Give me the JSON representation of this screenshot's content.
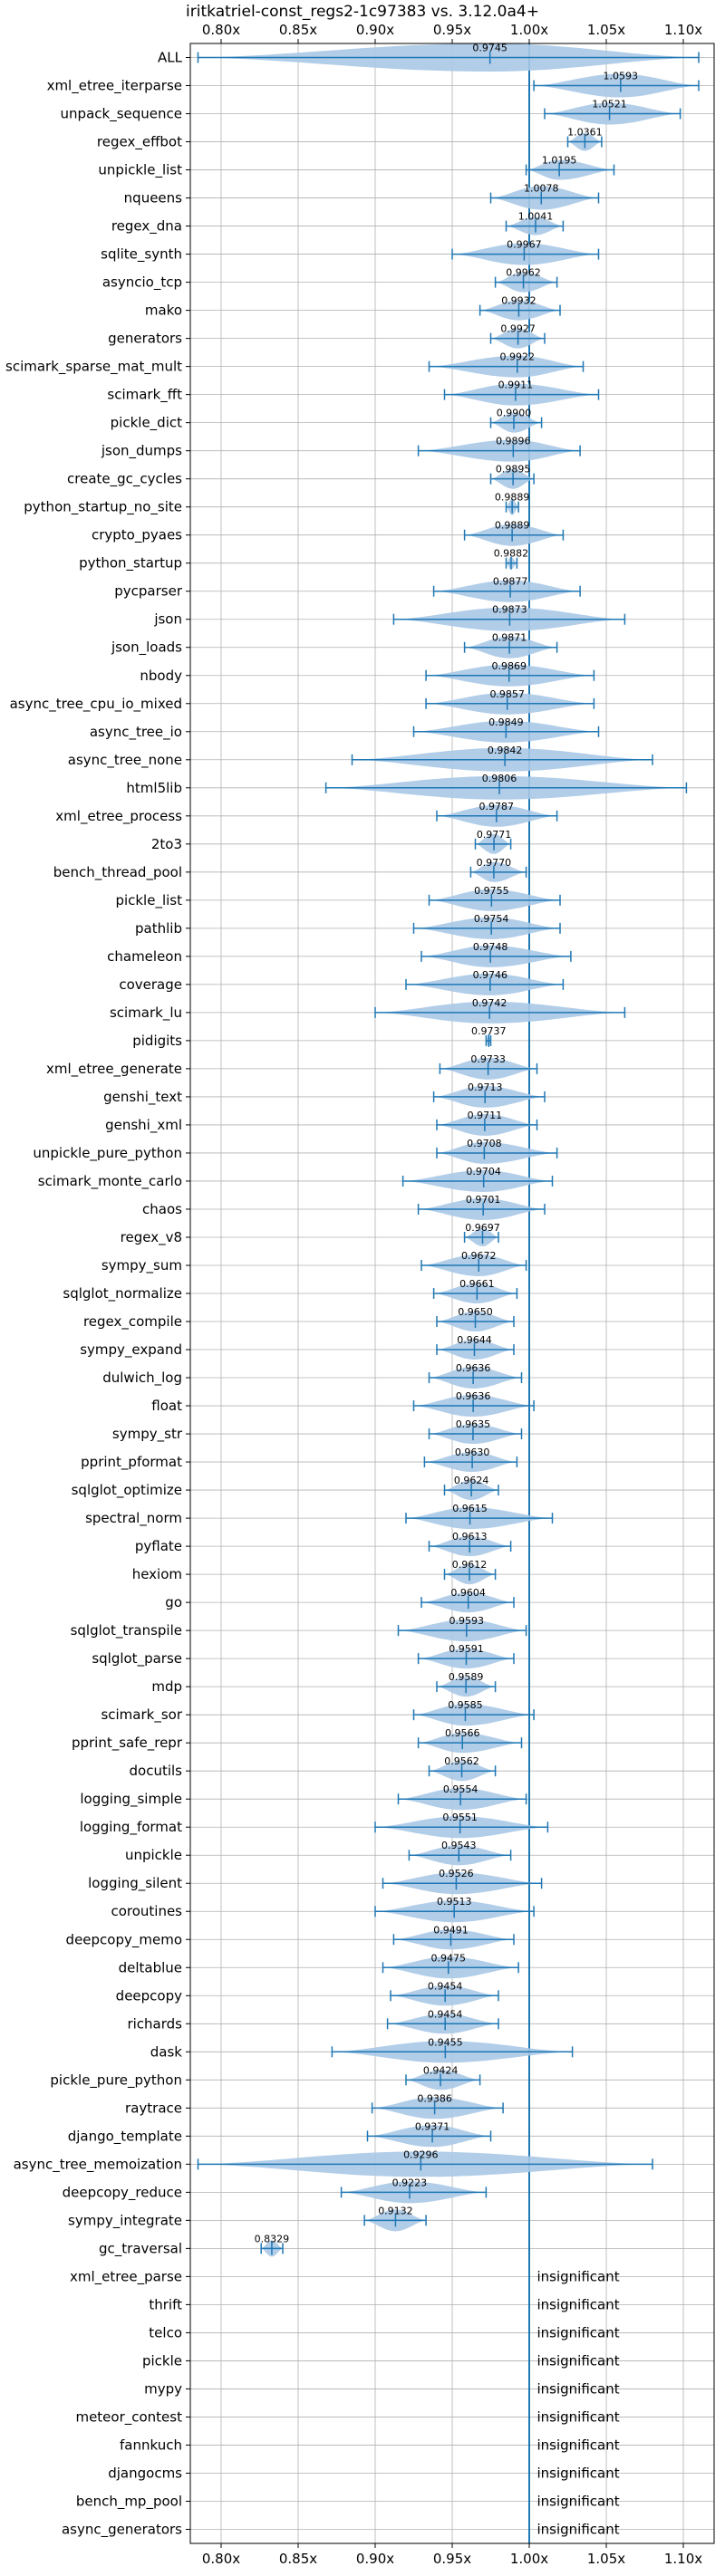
{
  "chart_data": {
    "type": "violin",
    "title": "iritkatriel-const_regs2-1c97383 vs. 3.12.0a4+",
    "xlabel": "",
    "ylabel": "",
    "xlim": [
      0.78,
      1.12
    ],
    "xticks": [
      0.8,
      0.85,
      0.9,
      0.95,
      1.0,
      1.05,
      1.1
    ],
    "xtick_labels": [
      "0.80x",
      "0.85x",
      "0.90x",
      "0.95x",
      "1.00x",
      "1.05x",
      "1.10x"
    ],
    "reference_line": 1.0,
    "grid": true,
    "colors": {
      "body": "#a9c8e6",
      "line": "#1f77b4",
      "grid": "#b0b0b0"
    },
    "insignificant_text": "insignificant",
    "rows": [
      {
        "name": "ALL",
        "value": 0.9745,
        "label": "0.9745",
        "min": 0.785,
        "max": 1.11,
        "w": 16
      },
      {
        "name": "xml_etree_iterparse",
        "value": 1.0593,
        "label": "1.0593",
        "min": 1.003,
        "max": 1.11,
        "w": 13
      },
      {
        "name": "unpack_sequence",
        "value": 1.0521,
        "label": "1.0521",
        "min": 1.01,
        "max": 1.098,
        "w": 12
      },
      {
        "name": "regex_effbot",
        "value": 1.0361,
        "label": "1.0361",
        "min": 1.025,
        "max": 1.047,
        "w": 10
      },
      {
        "name": "unpickle_list",
        "value": 1.0195,
        "label": "1.0195",
        "min": 0.998,
        "max": 1.055,
        "w": 11
      },
      {
        "name": "nqueens",
        "value": 1.0078,
        "label": "1.0078",
        "min": 0.975,
        "max": 1.045,
        "w": 13
      },
      {
        "name": "regex_dna",
        "value": 1.0041,
        "label": "1.0041",
        "min": 0.985,
        "max": 1.022,
        "w": 10
      },
      {
        "name": "sqlite_synth",
        "value": 0.9967,
        "label": "0.9967",
        "min": 0.95,
        "max": 1.045,
        "w": 12
      },
      {
        "name": "asyncio_tcp",
        "value": 0.9962,
        "label": "0.9962",
        "min": 0.978,
        "max": 1.018,
        "w": 11
      },
      {
        "name": "mako",
        "value": 0.9932,
        "label": "0.9932",
        "min": 0.968,
        "max": 1.02,
        "w": 11
      },
      {
        "name": "generators",
        "value": 0.9927,
        "label": "0.9927",
        "min": 0.975,
        "max": 1.01,
        "w": 11
      },
      {
        "name": "scimark_sparse_mat_mult",
        "value": 0.9922,
        "label": "0.9922",
        "min": 0.935,
        "max": 1.035,
        "w": 12
      },
      {
        "name": "scimark_fft",
        "value": 0.9911,
        "label": "0.9911",
        "min": 0.945,
        "max": 1.045,
        "w": 12
      },
      {
        "name": "pickle_dict",
        "value": 0.99,
        "label": "0.9900",
        "min": 0.975,
        "max": 1.008,
        "w": 11
      },
      {
        "name": "json_dumps",
        "value": 0.9896,
        "label": "0.9896",
        "min": 0.928,
        "max": 1.033,
        "w": 12
      },
      {
        "name": "create_gc_cycles",
        "value": 0.9895,
        "label": "0.9895",
        "min": 0.975,
        "max": 1.003,
        "w": 11
      },
      {
        "name": "python_startup_no_site",
        "value": 0.9889,
        "label": "0.9889",
        "min": 0.985,
        "max": 0.993,
        "w": 9
      },
      {
        "name": "crypto_pyaes",
        "value": 0.9889,
        "label": "0.9889",
        "min": 0.958,
        "max": 1.022,
        "w": 12
      },
      {
        "name": "python_startup",
        "value": 0.9882,
        "label": "0.9882",
        "min": 0.985,
        "max": 0.992,
        "w": 7
      },
      {
        "name": "pycparser",
        "value": 0.9877,
        "label": "0.9877",
        "min": 0.938,
        "max": 1.033,
        "w": 12
      },
      {
        "name": "json",
        "value": 0.9873,
        "label": "0.9873",
        "min": 0.912,
        "max": 1.062,
        "w": 13
      },
      {
        "name": "json_loads",
        "value": 0.9871,
        "label": "0.9871",
        "min": 0.958,
        "max": 1.018,
        "w": 12
      },
      {
        "name": "nbody",
        "value": 0.9869,
        "label": "0.9869",
        "min": 0.933,
        "max": 1.042,
        "w": 12
      },
      {
        "name": "async_tree_cpu_io_mixed",
        "value": 0.9857,
        "label": "0.9857",
        "min": 0.933,
        "max": 1.042,
        "w": 12
      },
      {
        "name": "async_tree_io",
        "value": 0.9849,
        "label": "0.9849",
        "min": 0.925,
        "max": 1.045,
        "w": 12
      },
      {
        "name": "async_tree_none",
        "value": 0.9842,
        "label": "0.9842",
        "min": 0.885,
        "max": 1.08,
        "w": 13
      },
      {
        "name": "html5lib",
        "value": 0.9806,
        "label": "0.9806",
        "min": 0.868,
        "max": 1.102,
        "w": 13
      },
      {
        "name": "xml_etree_process",
        "value": 0.9787,
        "label": "0.9787",
        "min": 0.94,
        "max": 1.018,
        "w": 12
      },
      {
        "name": "2to3",
        "value": 0.9771,
        "label": "0.9771",
        "min": 0.965,
        "max": 0.988,
        "w": 11
      },
      {
        "name": "bench_thread_pool",
        "value": 0.977,
        "label": "0.9770",
        "min": 0.962,
        "max": 0.998,
        "w": 11
      },
      {
        "name": "pickle_list",
        "value": 0.9755,
        "label": "0.9755",
        "min": 0.935,
        "max": 1.02,
        "w": 12
      },
      {
        "name": "pathlib",
        "value": 0.9754,
        "label": "0.9754",
        "min": 0.925,
        "max": 1.02,
        "w": 12
      },
      {
        "name": "chameleon",
        "value": 0.9748,
        "label": "0.9748",
        "min": 0.93,
        "max": 1.027,
        "w": 12
      },
      {
        "name": "coverage",
        "value": 0.9746,
        "label": "0.9746",
        "min": 0.92,
        "max": 1.022,
        "w": 12
      },
      {
        "name": "scimark_lu",
        "value": 0.9742,
        "label": "0.9742",
        "min": 0.9,
        "max": 1.062,
        "w": 12
      },
      {
        "name": "pidigits",
        "value": 0.9737,
        "label": "0.9737",
        "min": 0.972,
        "max": 0.975,
        "w": 7
      },
      {
        "name": "xml_etree_generate",
        "value": 0.9733,
        "label": "0.9733",
        "min": 0.942,
        "max": 1.005,
        "w": 12
      },
      {
        "name": "genshi_text",
        "value": 0.9713,
        "label": "0.9713",
        "min": 0.938,
        "max": 1.01,
        "w": 12
      },
      {
        "name": "genshi_xml",
        "value": 0.9711,
        "label": "0.9711",
        "min": 0.94,
        "max": 1.005,
        "w": 12
      },
      {
        "name": "unpickle_pure_python",
        "value": 0.9708,
        "label": "0.9708",
        "min": 0.94,
        "max": 1.018,
        "w": 12
      },
      {
        "name": "scimark_monte_carlo",
        "value": 0.9704,
        "label": "0.9704",
        "min": 0.918,
        "max": 1.015,
        "w": 12
      },
      {
        "name": "chaos",
        "value": 0.9701,
        "label": "0.9701",
        "min": 0.928,
        "max": 1.01,
        "w": 12
      },
      {
        "name": "regex_v8",
        "value": 0.9697,
        "label": "0.9697",
        "min": 0.958,
        "max": 0.98,
        "w": 10
      },
      {
        "name": "sympy_sum",
        "value": 0.9672,
        "label": "0.9672",
        "min": 0.93,
        "max": 0.998,
        "w": 12
      },
      {
        "name": "sqlglot_normalize",
        "value": 0.9661,
        "label": "0.9661",
        "min": 0.938,
        "max": 0.992,
        "w": 11
      },
      {
        "name": "regex_compile",
        "value": 0.965,
        "label": "0.9650",
        "min": 0.94,
        "max": 0.99,
        "w": 11
      },
      {
        "name": "sympy_expand",
        "value": 0.9644,
        "label": "0.9644",
        "min": 0.94,
        "max": 0.99,
        "w": 11
      },
      {
        "name": "dulwich_log",
        "value": 0.9636,
        "label": "0.9636",
        "min": 0.935,
        "max": 0.995,
        "w": 12
      },
      {
        "name": "float",
        "value": 0.9636,
        "label": "0.9636",
        "min": 0.925,
        "max": 1.003,
        "w": 12
      },
      {
        "name": "sympy_str",
        "value": 0.9635,
        "label": "0.9635",
        "min": 0.935,
        "max": 0.995,
        "w": 11
      },
      {
        "name": "pprint_pformat",
        "value": 0.963,
        "label": "0.9630",
        "min": 0.932,
        "max": 0.992,
        "w": 11
      },
      {
        "name": "sqlglot_optimize",
        "value": 0.9624,
        "label": "0.9624",
        "min": 0.945,
        "max": 0.98,
        "w": 11
      },
      {
        "name": "spectral_norm",
        "value": 0.9615,
        "label": "0.9615",
        "min": 0.92,
        "max": 1.015,
        "w": 12
      },
      {
        "name": "pyflate",
        "value": 0.9613,
        "label": "0.9613",
        "min": 0.935,
        "max": 0.988,
        "w": 11
      },
      {
        "name": "hexiom",
        "value": 0.9612,
        "label": "0.9612",
        "min": 0.945,
        "max": 0.978,
        "w": 11
      },
      {
        "name": "go",
        "value": 0.9604,
        "label": "0.9604",
        "min": 0.93,
        "max": 0.99,
        "w": 11
      },
      {
        "name": "sqlglot_transpile",
        "value": 0.9593,
        "label": "0.9593",
        "min": 0.915,
        "max": 0.998,
        "w": 12
      },
      {
        "name": "sqlglot_parse",
        "value": 0.9591,
        "label": "0.9591",
        "min": 0.928,
        "max": 0.99,
        "w": 11
      },
      {
        "name": "mdp",
        "value": 0.9589,
        "label": "0.9589",
        "min": 0.94,
        "max": 0.978,
        "w": 11
      },
      {
        "name": "scimark_sor",
        "value": 0.9585,
        "label": "0.9585",
        "min": 0.925,
        "max": 1.003,
        "w": 12
      },
      {
        "name": "pprint_safe_repr",
        "value": 0.9566,
        "label": "0.9566",
        "min": 0.928,
        "max": 0.995,
        "w": 11
      },
      {
        "name": "docutils",
        "value": 0.9562,
        "label": "0.9562",
        "min": 0.935,
        "max": 0.978,
        "w": 11
      },
      {
        "name": "logging_simple",
        "value": 0.9554,
        "label": "0.9554",
        "min": 0.915,
        "max": 0.998,
        "w": 12
      },
      {
        "name": "logging_format",
        "value": 0.9551,
        "label": "0.9551",
        "min": 0.9,
        "max": 1.012,
        "w": 12
      },
      {
        "name": "unpickle",
        "value": 0.9543,
        "label": "0.9543",
        "min": 0.922,
        "max": 0.988,
        "w": 11
      },
      {
        "name": "logging_silent",
        "value": 0.9526,
        "label": "0.9526",
        "min": 0.905,
        "max": 1.008,
        "w": 12
      },
      {
        "name": "coroutines",
        "value": 0.9513,
        "label": "0.9513",
        "min": 0.9,
        "max": 1.003,
        "w": 12
      },
      {
        "name": "deepcopy_memo",
        "value": 0.9491,
        "label": "0.9491",
        "min": 0.912,
        "max": 0.99,
        "w": 11
      },
      {
        "name": "deltablue",
        "value": 0.9475,
        "label": "0.9475",
        "min": 0.905,
        "max": 0.993,
        "w": 12
      },
      {
        "name": "deepcopy",
        "value": 0.9454,
        "label": "0.9454",
        "min": 0.91,
        "max": 0.98,
        "w": 11
      },
      {
        "name": "richards",
        "value": 0.9454,
        "label": "0.9454",
        "min": 0.908,
        "max": 0.98,
        "w": 11
      },
      {
        "name": "dask",
        "value": 0.9455,
        "label": "0.9455",
        "min": 0.872,
        "max": 1.028,
        "w": 12
      },
      {
        "name": "pickle_pure_python",
        "value": 0.9424,
        "label": "0.9424",
        "min": 0.92,
        "max": 0.968,
        "w": 11
      },
      {
        "name": "raytrace",
        "value": 0.9386,
        "label": "0.9386",
        "min": 0.898,
        "max": 0.983,
        "w": 12
      },
      {
        "name": "django_template",
        "value": 0.9371,
        "label": "0.9371",
        "min": 0.895,
        "max": 0.975,
        "w": 12
      },
      {
        "name": "async_tree_memoization",
        "value": 0.9296,
        "label": "0.9296",
        "min": 0.785,
        "max": 1.08,
        "w": 14
      },
      {
        "name": "deepcopy_reduce",
        "value": 0.9223,
        "label": "0.9223",
        "min": 0.878,
        "max": 0.972,
        "w": 12
      },
      {
        "name": "sympy_integrate",
        "value": 0.9132,
        "label": "0.9132",
        "min": 0.893,
        "max": 0.933,
        "w": 12
      },
      {
        "name": "gc_traversal",
        "value": 0.8329,
        "label": "0.8329",
        "min": 0.826,
        "max": 0.84,
        "w": 9
      },
      {
        "name": "xml_etree_parse",
        "insignificant": true
      },
      {
        "name": "thrift",
        "insignificant": true
      },
      {
        "name": "telco",
        "insignificant": true
      },
      {
        "name": "pickle",
        "insignificant": true
      },
      {
        "name": "mypy",
        "insignificant": true
      },
      {
        "name": "meteor_contest",
        "insignificant": true
      },
      {
        "name": "fannkuch",
        "insignificant": true
      },
      {
        "name": "djangocms",
        "insignificant": true
      },
      {
        "name": "bench_mp_pool",
        "insignificant": true
      },
      {
        "name": "async_generators",
        "insignificant": true
      }
    ]
  }
}
